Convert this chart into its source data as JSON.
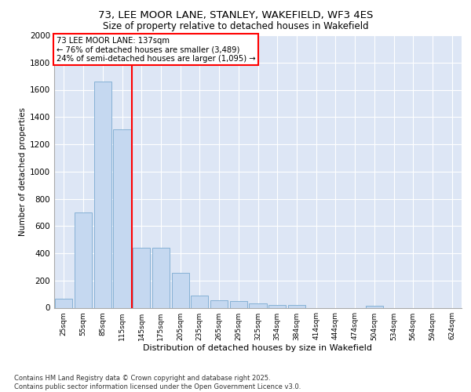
{
  "title_line1": "73, LEE MOOR LANE, STANLEY, WAKEFIELD, WF3 4ES",
  "title_line2": "Size of property relative to detached houses in Wakefield",
  "xlabel": "Distribution of detached houses by size in Wakefield",
  "ylabel": "Number of detached properties",
  "categories": [
    "25sqm",
    "55sqm",
    "85sqm",
    "115sqm",
    "145sqm",
    "175sqm",
    "205sqm",
    "235sqm",
    "265sqm",
    "295sqm",
    "325sqm",
    "354sqm",
    "384sqm",
    "414sqm",
    "444sqm",
    "474sqm",
    "504sqm",
    "534sqm",
    "564sqm",
    "594sqm",
    "624sqm"
  ],
  "values": [
    65,
    700,
    1660,
    1310,
    440,
    440,
    255,
    90,
    55,
    50,
    30,
    20,
    20,
    0,
    0,
    0,
    15,
    0,
    0,
    0,
    0
  ],
  "bar_color": "#c5d8f0",
  "bar_edge_color": "#7aaad0",
  "vline_color": "red",
  "vline_pos": 3.5,
  "annotation_title": "73 LEE MOOR LANE: 137sqm",
  "annotation_line2": "← 76% of detached houses are smaller (3,489)",
  "annotation_line3": "24% of semi-detached houses are larger (1,095) →",
  "annotation_box_color": "red",
  "ylim": [
    0,
    2000
  ],
  "yticks": [
    0,
    200,
    400,
    600,
    800,
    1000,
    1200,
    1400,
    1600,
    1800,
    2000
  ],
  "background_color": "#dde6f5",
  "grid_color": "#ffffff",
  "footnote_line1": "Contains HM Land Registry data © Crown copyright and database right 2025.",
  "footnote_line2": "Contains public sector information licensed under the Open Government Licence v3.0."
}
